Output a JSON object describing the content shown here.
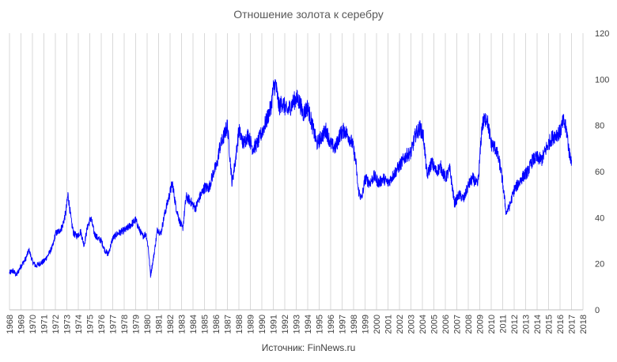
{
  "chart_data": {
    "type": "line",
    "title": "Отношение  золота к серебру",
    "source": "Источник:  FinNews.ru",
    "xlabel": "",
    "ylabel": "",
    "xlim": [
      1968,
      2018
    ],
    "ylim": [
      0,
      120
    ],
    "y_ticks": [
      0,
      20,
      40,
      60,
      80,
      100,
      120
    ],
    "x_tick_labels": [
      "1968",
      "1969",
      "1970",
      "1971",
      "1972",
      "1973",
      "1974",
      "1975",
      "1976",
      "1977",
      "1978",
      "1979",
      "1980",
      "1981",
      "1982",
      "1983",
      "1984",
      "1985",
      "1986",
      "1987",
      "1988",
      "1989",
      "1990",
      "1991",
      "1992",
      "1993",
      "1994",
      "1995",
      "1996",
      "1997",
      "1998",
      "1999",
      "2000",
      "2001",
      "2002",
      "2003",
      "2004",
      "2005",
      "2006",
      "2007",
      "2008",
      "2009",
      "2010",
      "2011",
      "2012",
      "2013",
      "2014",
      "2015",
      "2016",
      "2017",
      "2018"
    ],
    "grid": "vertical",
    "y_axis_side": "right",
    "series": [
      {
        "color": "#0000ff",
        "x": [
          1968.0,
          1968.3,
          1968.6,
          1969.0,
          1969.4,
          1969.7,
          1970.0,
          1970.3,
          1970.6,
          1971.0,
          1971.4,
          1971.8,
          1972.0,
          1972.3,
          1972.6,
          1972.9,
          1973.1,
          1973.4,
          1973.6,
          1973.9,
          1974.2,
          1974.5,
          1974.8,
          1975.1,
          1975.4,
          1975.7,
          1976.0,
          1976.3,
          1976.6,
          1977.0,
          1977.4,
          1977.8,
          1978.2,
          1978.6,
          1979.0,
          1979.3,
          1979.6,
          1979.9,
          1980.1,
          1980.3,
          1980.6,
          1980.9,
          1981.2,
          1981.5,
          1981.9,
          1982.2,
          1982.5,
          1982.8,
          1983.1,
          1983.4,
          1983.8,
          1984.2,
          1984.6,
          1985.0,
          1985.4,
          1985.8,
          1986.1,
          1986.3,
          1986.6,
          1987.0,
          1987.4,
          1987.7,
          1988.0,
          1988.4,
          1988.8,
          1989.2,
          1989.6,
          1990.0,
          1990.4,
          1990.8,
          1991.0,
          1991.2,
          1991.5,
          1991.8,
          1992.2,
          1992.6,
          1993.0,
          1993.3,
          1993.6,
          1994.0,
          1994.4,
          1994.8,
          1995.2,
          1995.6,
          1996.0,
          1996.4,
          1996.8,
          1997.2,
          1997.6,
          1997.9,
          1998.2,
          1998.4,
          1998.7,
          1999.0,
          1999.4,
          1999.8,
          2000.2,
          2000.6,
          2001.0,
          2001.4,
          2001.8,
          2002.2,
          2002.6,
          2003.0,
          2003.4,
          2003.8,
          2004.1,
          2004.4,
          2004.8,
          2005.2,
          2005.6,
          2006.0,
          2006.4,
          2006.8,
          2007.2,
          2007.6,
          2008.0,
          2008.4,
          2008.8,
          2008.9,
          2009.2,
          2009.6,
          2010.0,
          2010.4,
          2010.8,
          2011.0,
          2011.3,
          2011.6,
          2012.0,
          2012.4,
          2012.8,
          2013.2,
          2013.6,
          2014.0,
          2014.4,
          2014.8,
          2015.2,
          2015.6,
          2016.0,
          2016.3,
          2016.6,
          2016.8,
          2017.0
        ],
        "y": [
          16,
          17,
          15,
          19,
          22,
          26,
          21,
          19,
          20,
          21,
          24,
          28,
          33,
          34,
          36,
          42,
          50,
          38,
          33,
          32,
          34,
          28,
          36,
          40,
          33,
          31,
          30,
          26,
          24,
          31,
          33,
          34,
          35,
          37,
          39,
          35,
          32,
          33,
          27,
          15,
          24,
          35,
          33,
          41,
          49,
          55,
          45,
          39,
          35,
          49,
          47,
          44,
          49,
          53,
          53,
          60,
          63,
          70,
          74,
          80,
          55,
          65,
          78,
          72,
          76,
          70,
          72,
          77,
          82,
          88,
          96,
          98,
          88,
          90,
          86,
          89,
          92,
          90,
          85,
          88,
          80,
          72,
          75,
          78,
          72,
          70,
          76,
          78,
          75,
          72,
          64,
          52,
          48,
          57,
          55,
          58,
          55,
          57,
          55,
          58,
          61,
          64,
          67,
          68,
          76,
          79,
          75,
          58,
          64,
          60,
          62,
          57,
          61,
          46,
          50,
          48,
          54,
          57,
          54,
          58,
          80,
          84,
          72,
          70,
          62,
          55,
          42,
          45,
          52,
          55,
          58,
          60,
          65,
          66,
          65,
          70,
          74,
          76,
          77,
          82,
          77,
          68,
          65
        ]
      }
    ]
  }
}
